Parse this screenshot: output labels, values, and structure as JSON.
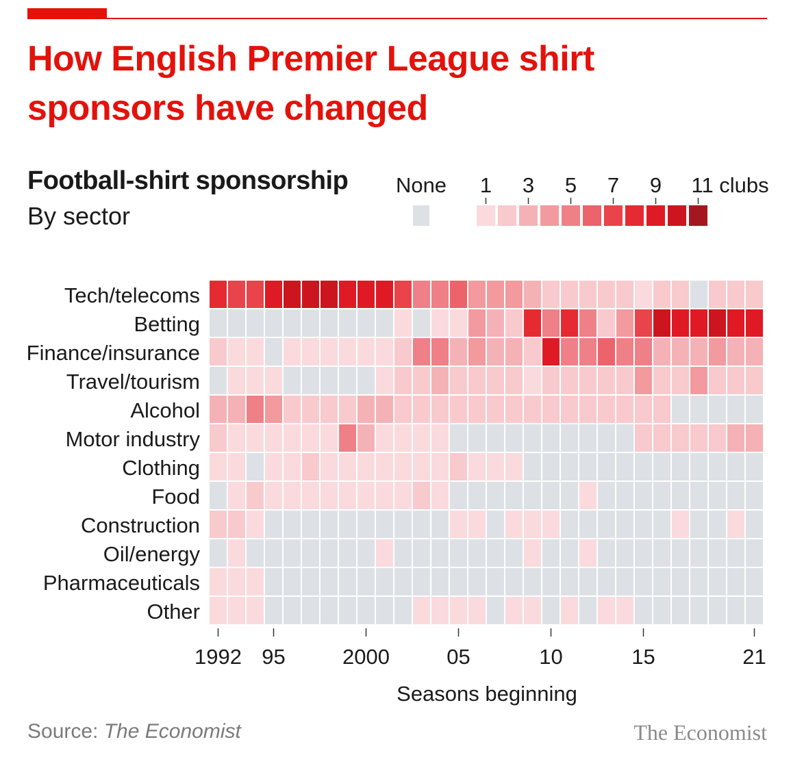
{
  "header": {
    "title": "How English Premier League shirt sponsors have changed",
    "subtitle": "Football-shirt sponsorship",
    "subsubtitle": "By sector"
  },
  "footer": {
    "source_label": "Source:",
    "source_name": "The Economist",
    "brand": "The Economist"
  },
  "colors": {
    "accent": "#e3120b",
    "none": "#dde1e5",
    "scale": [
      "#fadadd",
      "#f8c9cd",
      "#f5b2b6",
      "#f29a9e",
      "#ef8087",
      "#ec636b",
      "#e9434b",
      "#e52a32",
      "#e01a24",
      "#cd1520",
      "#a31820"
    ]
  },
  "chart_data": {
    "type": "heatmap",
    "title": "Football-shirt sponsorship",
    "subtitle": "By sector",
    "xlabel": "Seasons beginning",
    "ylabel": "",
    "x": [
      1992,
      1993,
      1994,
      1995,
      1996,
      1997,
      1998,
      1999,
      2000,
      2001,
      2002,
      2003,
      2004,
      2005,
      2006,
      2007,
      2008,
      2009,
      2010,
      2011,
      2012,
      2013,
      2014,
      2015,
      2016,
      2017,
      2018,
      2019,
      2020,
      2021
    ],
    "x_tick_values": [
      1992,
      1995,
      2000,
      2005,
      2010,
      2015,
      2021
    ],
    "x_tick_labels": [
      "1992",
      "95",
      "2000",
      "05",
      "10",
      "15",
      "21"
    ],
    "legend": {
      "none_label": "None",
      "tick_labels": [
        "1",
        "3",
        "5",
        "7",
        "9",
        "11 clubs"
      ],
      "steps": 11,
      "placement": "top-right"
    },
    "rows": [
      {
        "name": "Tech/telecoms",
        "values": [
          8,
          7,
          7,
          9,
          10,
          10,
          10,
          9,
          9,
          9,
          7,
          5,
          5,
          6,
          4,
          4,
          4,
          3,
          2,
          2,
          2,
          2,
          2,
          1,
          2,
          2,
          0,
          2,
          2,
          2
        ]
      },
      {
        "name": "Betting",
        "values": [
          0,
          0,
          0,
          0,
          0,
          0,
          0,
          0,
          0,
          0,
          1,
          0,
          1,
          1,
          4,
          3,
          2,
          8,
          5,
          8,
          5,
          2,
          4,
          7,
          10,
          9,
          9,
          10,
          9,
          9
        ]
      },
      {
        "name": "Finance/insurance",
        "values": [
          2,
          1,
          1,
          0,
          1,
          1,
          1,
          1,
          1,
          1,
          2,
          5,
          5,
          3,
          4,
          3,
          3,
          2,
          9,
          5,
          5,
          6,
          5,
          5,
          3,
          3,
          3,
          4,
          3,
          3
        ]
      },
      {
        "name": "Travel/tourism",
        "values": [
          0,
          1,
          1,
          1,
          0,
          0,
          0,
          0,
          0,
          1,
          2,
          2,
          3,
          2,
          2,
          2,
          2,
          1,
          2,
          2,
          2,
          2,
          2,
          4,
          2,
          2,
          4,
          2,
          2,
          2
        ]
      },
      {
        "name": "Alcohol",
        "values": [
          3,
          3,
          5,
          4,
          2,
          2,
          2,
          2,
          3,
          3,
          2,
          2,
          2,
          2,
          2,
          2,
          2,
          2,
          2,
          2,
          2,
          2,
          2,
          2,
          2,
          0,
          0,
          0,
          0,
          0
        ]
      },
      {
        "name": "Motor industry",
        "values": [
          2,
          1,
          1,
          1,
          1,
          1,
          1,
          5,
          3,
          1,
          1,
          1,
          1,
          0,
          0,
          0,
          0,
          0,
          0,
          0,
          0,
          0,
          0,
          2,
          2,
          2,
          2,
          2,
          3,
          3
        ]
      },
      {
        "name": "Clothing",
        "values": [
          1,
          1,
          0,
          1,
          1,
          2,
          1,
          1,
          1,
          1,
          1,
          1,
          1,
          2,
          1,
          1,
          1,
          0,
          0,
          0,
          0,
          0,
          0,
          0,
          0,
          0,
          0,
          0,
          0,
          0
        ]
      },
      {
        "name": "Food",
        "values": [
          0,
          1,
          2,
          1,
          1,
          1,
          1,
          1,
          1,
          1,
          1,
          2,
          1,
          0,
          0,
          0,
          0,
          0,
          0,
          0,
          1,
          0,
          0,
          0,
          0,
          0,
          0,
          0,
          0,
          0
        ]
      },
      {
        "name": "Construction",
        "values": [
          2,
          2,
          1,
          0,
          0,
          0,
          0,
          0,
          0,
          0,
          0,
          0,
          0,
          1,
          1,
          0,
          1,
          1,
          1,
          0,
          0,
          0,
          0,
          0,
          0,
          1,
          0,
          0,
          1,
          0
        ]
      },
      {
        "name": "Oil/energy",
        "values": [
          0,
          1,
          0,
          0,
          0,
          0,
          0,
          0,
          0,
          1,
          0,
          0,
          0,
          0,
          0,
          0,
          0,
          1,
          0,
          0,
          1,
          0,
          0,
          0,
          0,
          0,
          0,
          0,
          0,
          0
        ]
      },
      {
        "name": "Pharmaceuticals",
        "values": [
          1,
          1,
          1,
          0,
          0,
          0,
          0,
          0,
          0,
          0,
          0,
          0,
          0,
          0,
          0,
          0,
          0,
          0,
          0,
          0,
          0,
          0,
          0,
          0,
          0,
          0,
          0,
          0,
          0,
          0
        ]
      },
      {
        "name": "Other",
        "values": [
          1,
          1,
          1,
          0,
          0,
          0,
          0,
          0,
          0,
          0,
          0,
          1,
          1,
          1,
          1,
          0,
          1,
          1,
          0,
          1,
          0,
          1,
          1,
          0,
          0,
          0,
          0,
          0,
          0,
          0
        ]
      }
    ],
    "grid": false
  }
}
